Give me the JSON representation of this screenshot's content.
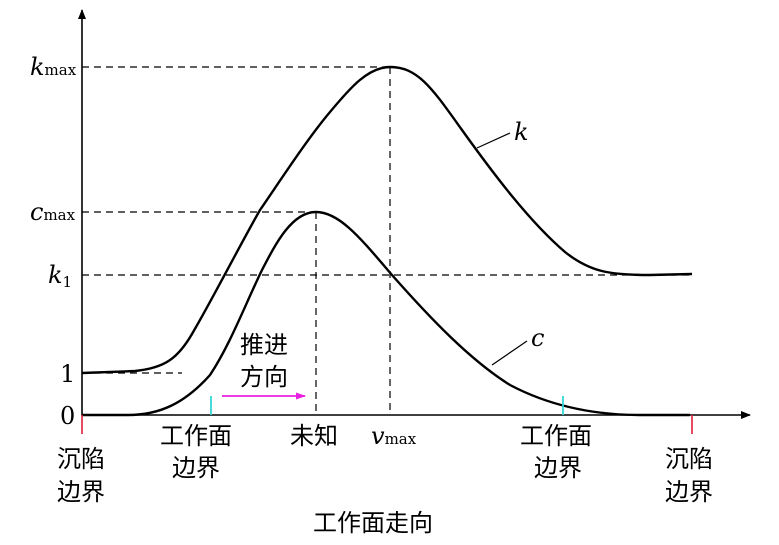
{
  "axis": {
    "x_title": "工作面走向",
    "y_ticks": {
      "k_max_main": "k",
      "k_max_sub": "max",
      "c_max_main": "c",
      "c_max_sub": "max",
      "k1_main": "k",
      "k1_sub": "1",
      "one": "1",
      "zero": "0"
    }
  },
  "curves": {
    "k_label": "k",
    "c_label": "c"
  },
  "bottom_labels": {
    "left_subsidence_1": "沉陷",
    "left_subsidence_2": "边界",
    "left_face_1": "工作面",
    "left_face_2": "边界",
    "unknown": "未知",
    "vmax_main": "v",
    "vmax_sub": "max",
    "right_face_1": "工作面",
    "right_face_2": "边界",
    "right_subsidence_1": "沉陷",
    "right_subsidence_2": "边界"
  },
  "advance": {
    "line1": "推进",
    "line2": "方向"
  },
  "colors": {
    "curve": "#000000",
    "subsidence_marker": "#e0203a",
    "face_marker": "#33d6d6",
    "advance_arrow": "#e820e0"
  }
}
